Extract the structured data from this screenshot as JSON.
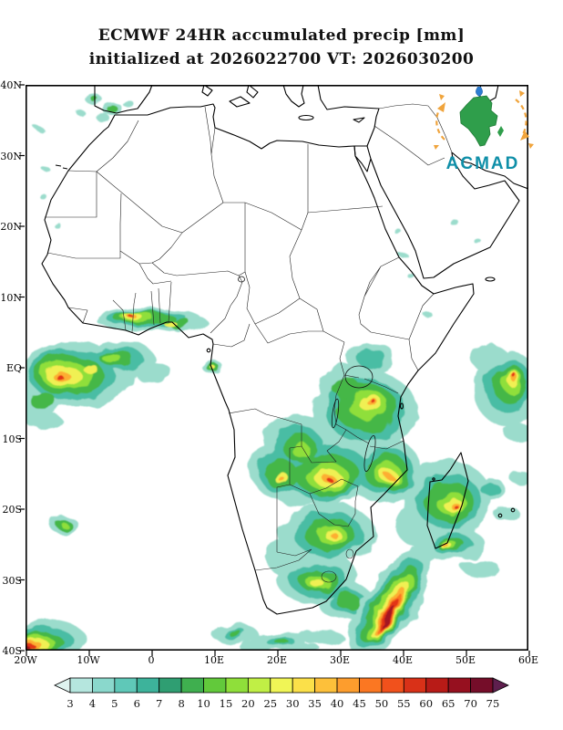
{
  "title": {
    "line1": "ECMWF 24HR accumulated precip [mm]",
    "line2": "initialized at 2026022700 VT: 2026030200"
  },
  "map": {
    "y_axis_labels": [
      "40N",
      "30N",
      "20N",
      "10N",
      "EQ",
      "10S",
      "20S",
      "30S",
      "40S"
    ],
    "x_axis_labels": [
      "20W",
      "10W",
      "0",
      "10E",
      "20E",
      "30E",
      "40E",
      "50E",
      "60E"
    ]
  },
  "logo": {
    "text": "ACMAD",
    "africa_color": "#2f9e4b",
    "drop_color": "#2d7dd2",
    "arrow_color": "#f0a43c",
    "text_color": "#0f8fa8"
  },
  "colorbar": {
    "labels": [
      "3",
      "4",
      "5",
      "6",
      "7",
      "8",
      "10",
      "15",
      "20",
      "25",
      "30",
      "35",
      "40",
      "45",
      "50",
      "55",
      "60",
      "65",
      "70",
      "75"
    ],
    "colors": [
      "#dff3f0",
      "#b5e6de",
      "#8ad8cc",
      "#5fc8b8",
      "#3db39b",
      "#2f9e72",
      "#3faf4f",
      "#62c93b",
      "#8fdf3a",
      "#c0ef45",
      "#f0f556",
      "#fbe049",
      "#fdc03a",
      "#fd9d2d",
      "#fb7722",
      "#f1511c",
      "#d93118",
      "#b81b17",
      "#96101f",
      "#750d29",
      "#5e1f4e"
    ]
  },
  "chart_data": {
    "type": "heatmap",
    "title": "ECMWF 24HR accumulated precip [mm]",
    "valid": "initialized at 2026022700 VT: 2026030200",
    "x_range": [
      "20W",
      "60E"
    ],
    "y_range": [
      "40S",
      "40N"
    ],
    "colorbar_levels_mm": [
      3,
      4,
      5,
      6,
      7,
      8,
      10,
      15,
      20,
      25,
      30,
      35,
      40,
      45,
      50,
      55,
      60,
      65,
      70,
      75
    ]
  }
}
